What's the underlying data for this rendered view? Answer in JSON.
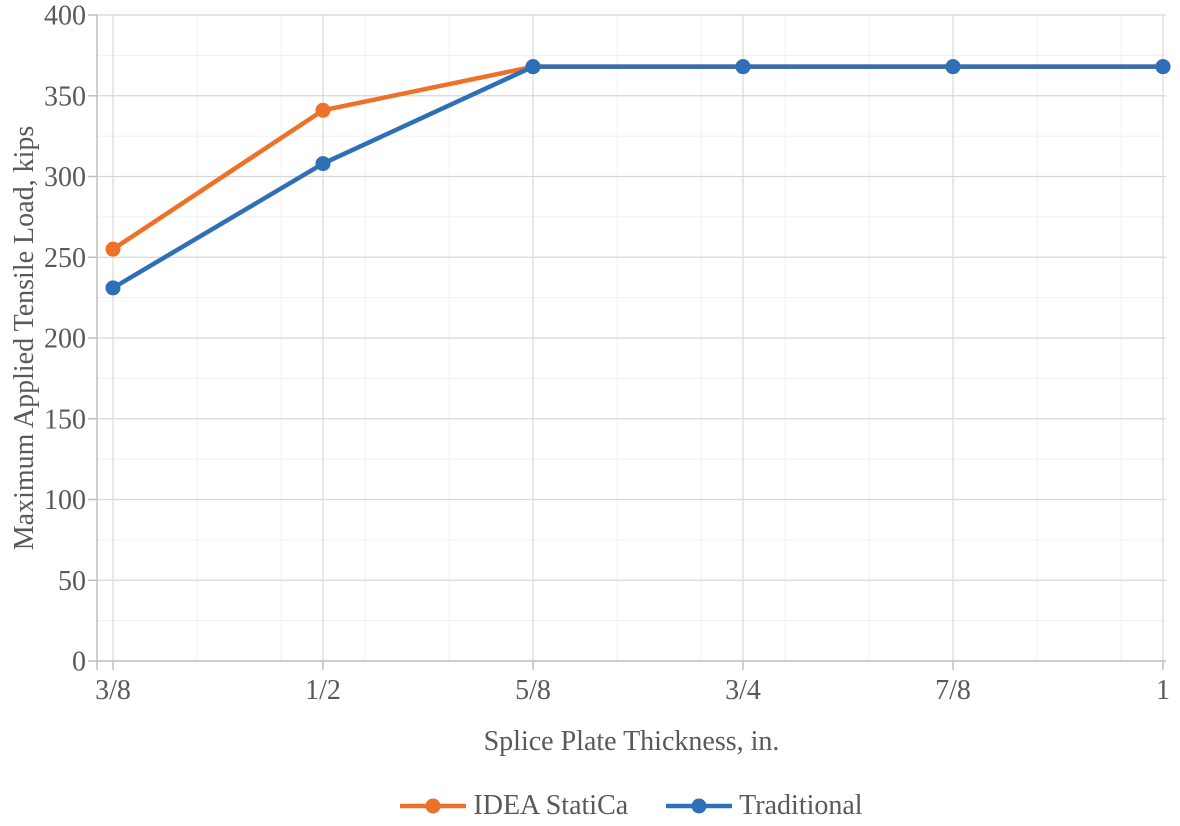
{
  "chart_data": {
    "type": "line",
    "title": "",
    "xlabel": "Splice Plate Thickness, in.",
    "ylabel": "Maximum Applied Tensile Load, kips",
    "x": [
      0.375,
      0.5,
      0.625,
      0.75,
      0.875,
      1.0
    ],
    "x_tick_labels": [
      "3/8",
      "1/2",
      "5/8",
      "3/4",
      "7/8",
      "1"
    ],
    "y_tick_labels": [
      "0",
      "50",
      "100",
      "150",
      "200",
      "250",
      "300",
      "350",
      "400"
    ],
    "series": [
      {
        "name": "IDEA StatiCa",
        "color": "#ED7128",
        "values": [
          255,
          341,
          368,
          368,
          368,
          368
        ]
      },
      {
        "name": "Traditional",
        "color": "#2E70B8",
        "values": [
          231,
          308,
          368,
          368,
          368,
          368
        ]
      }
    ],
    "xlim": [
      0.375,
      1.0
    ],
    "ylim": [
      0,
      400
    ],
    "x_major": 0.125,
    "x_minor": 0.05,
    "y_major": 50,
    "y_minor": 25,
    "grid": true,
    "legend_position": "bottom"
  },
  "styles": {
    "grid_major_color": "#D8D8D8",
    "grid_minor_color": "#F0F0F0",
    "axis_line_color": "#BFBFBF",
    "tick_label_color": "#595959",
    "marker_radius": 7.5,
    "line_width": 4.5
  }
}
